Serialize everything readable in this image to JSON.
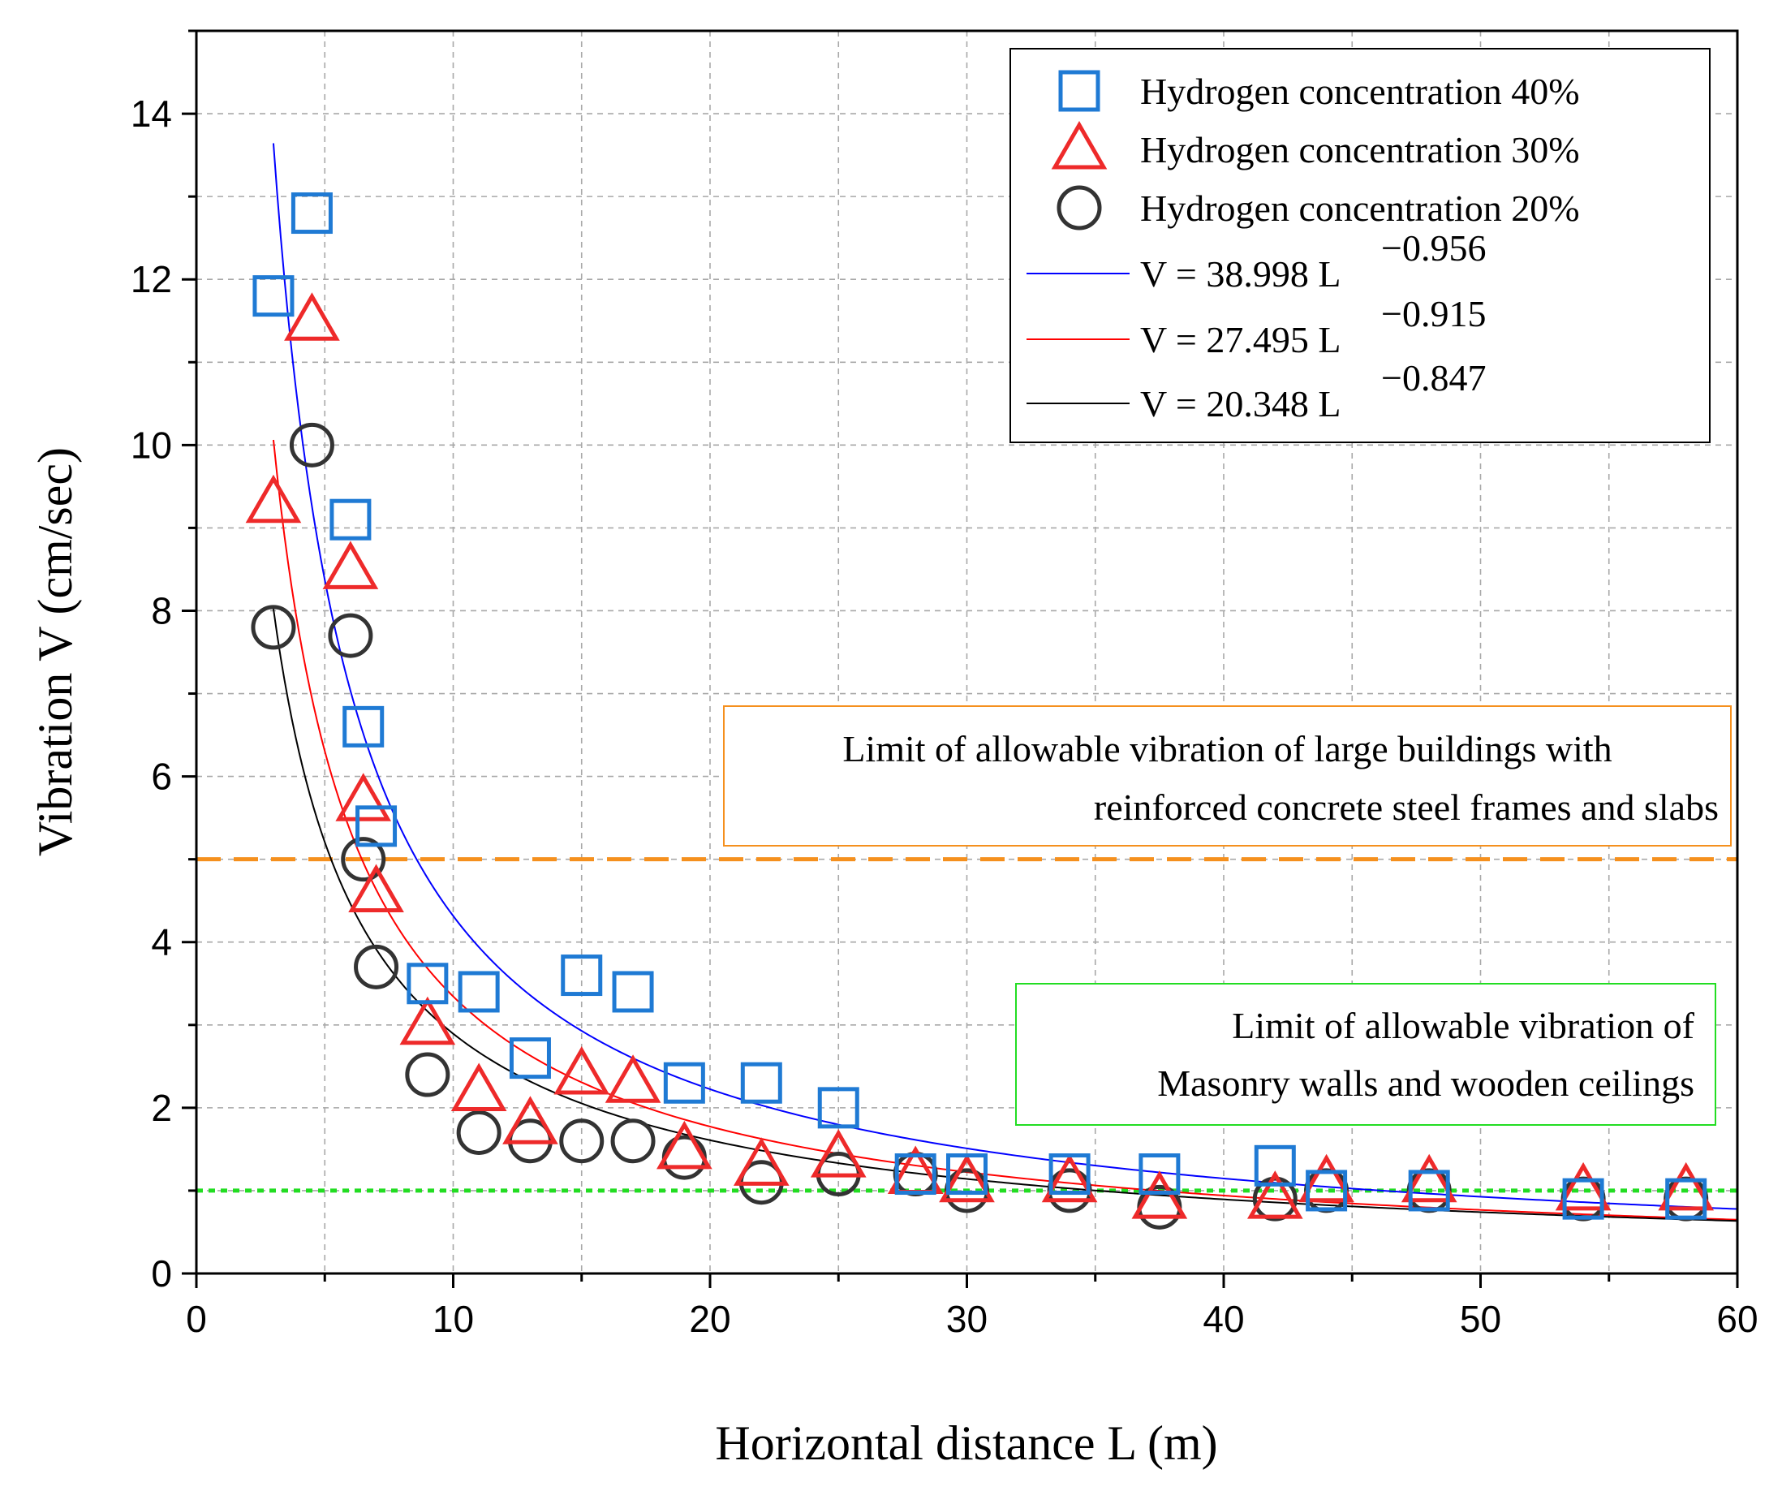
{
  "chart_data": {
    "type": "scatter",
    "xlabel": "Horizontal distance L (m)",
    "ylabel": "Vibration V (cm/sec)",
    "xlim": [
      0,
      60
    ],
    "ylim": [
      0,
      15
    ],
    "xticks": [
      0,
      10,
      20,
      30,
      40,
      50,
      60
    ],
    "yticks": [
      0,
      2,
      4,
      6,
      8,
      10,
      12,
      14
    ],
    "grid": true,
    "legend_position": "top-right",
    "series": [
      {
        "name": "Hydrogen concentration 40%",
        "marker": "square",
        "color": "#1f7ad4",
        "x": [
          3,
          4.5,
          6,
          6.5,
          7,
          9,
          11,
          13,
          15,
          17,
          19,
          22,
          25,
          28,
          30,
          34,
          37.5,
          42,
          44,
          48,
          54,
          58
        ],
        "y": [
          11.8,
          12.8,
          9.1,
          6.6,
          5.4,
          3.5,
          3.4,
          2.6,
          3.6,
          3.4,
          2.3,
          2.3,
          2.0,
          1.2,
          1.2,
          1.2,
          1.2,
          1.3,
          1.0,
          1.0,
          0.9,
          0.9
        ]
      },
      {
        "name": "Hydrogen concentration 30%",
        "marker": "triangle",
        "color": "#ee2a2a",
        "x": [
          3,
          4.5,
          6,
          6.5,
          7,
          9,
          11,
          13,
          15,
          17,
          19,
          22,
          25,
          28,
          30,
          34,
          37.5,
          42,
          44,
          48,
          54,
          58
        ],
        "y": [
          9.3,
          11.5,
          8.5,
          5.7,
          4.6,
          3.0,
          2.2,
          1.8,
          2.4,
          2.3,
          1.5,
          1.3,
          1.4,
          1.2,
          1.1,
          1.1,
          0.9,
          0.9,
          1.1,
          1.1,
          1.0,
          1.0
        ]
      },
      {
        "name": "Hydrogen concentration 20%",
        "marker": "circle",
        "color": "#333333",
        "x": [
          3,
          4.5,
          6,
          6.5,
          7,
          9,
          11,
          13,
          15,
          17,
          19,
          22,
          25,
          28,
          30,
          34,
          37.5,
          42,
          44,
          48,
          54,
          58
        ],
        "y": [
          7.8,
          10.0,
          7.7,
          5.0,
          3.7,
          2.4,
          1.7,
          1.6,
          1.6,
          1.6,
          1.4,
          1.1,
          1.2,
          1.2,
          1.0,
          1.0,
          0.8,
          0.9,
          1.0,
          1.0,
          0.9,
          0.9
        ]
      }
    ],
    "fits": [
      {
        "label_main": "V = 38.998 L",
        "label_exp": "−0.956",
        "a": 38.998,
        "b": -0.956,
        "color": "#0000ff",
        "x_start": 3
      },
      {
        "label_main": "V = 27.495 L",
        "label_exp": "−0.915",
        "a": 27.495,
        "b": -0.915,
        "color": "#ff0000",
        "x_start": 3
      },
      {
        "label_main": "V = 20.348 L",
        "label_exp": "−0.847",
        "a": 20.348,
        "b": -0.847,
        "color": "#000000",
        "x_start": 3
      }
    ],
    "thresholds": [
      {
        "value": 5,
        "color": "#f5901e",
        "style": "dashed",
        "annotation": [
          "Limit of allowable vibration of large buildings with",
          "reinforced concrete steel frames and slabs"
        ]
      },
      {
        "value": 1,
        "color": "#22dd22",
        "style": "dotted",
        "annotation": [
          "Limit of allowable vibration of",
          "Masonry walls and wooden ceilings"
        ]
      }
    ]
  }
}
